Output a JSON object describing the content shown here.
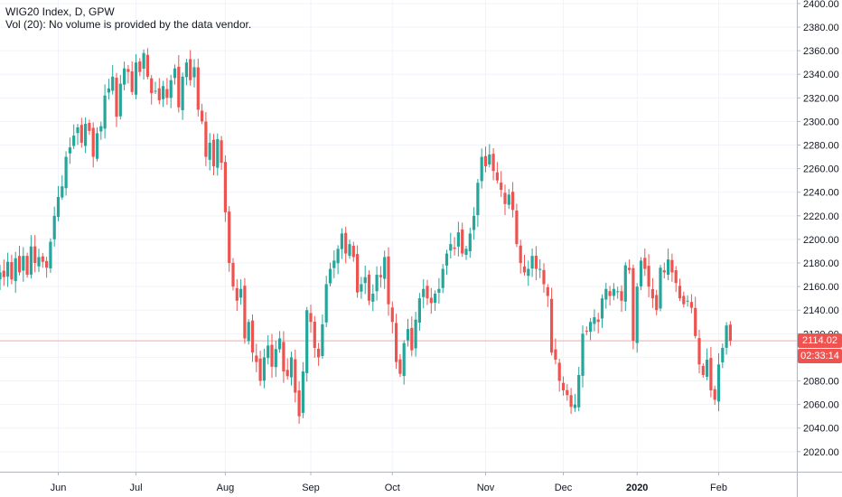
{
  "legend": {
    "title": "WIG20 Index, D, GPW",
    "volume_note": "Vol (20): No volume is provided by the data vendor."
  },
  "price_tag": {
    "value": "2114.02",
    "countdown": "02:33:14"
  },
  "colors": {
    "up": "#26a69a",
    "down": "#ef5350",
    "grid": "#f0f3fa",
    "axis_line": "#b2b5be",
    "axis_text": "#131722",
    "price_line": "#f7a8a6",
    "price_tag_bg": "#ef5350"
  },
  "chart_data": {
    "type": "candlestick",
    "symbol": "WIG20 Index",
    "interval": "D",
    "exchange": "GPW",
    "ylim": [
      2003,
      2403
    ],
    "y_ticks": [
      "2020.00",
      "2040.00",
      "2060.00",
      "2080.00",
      "2100.00",
      "2120.00",
      "2140.00",
      "2160.00",
      "2180.00",
      "2200.00",
      "2220.00",
      "2240.00",
      "2260.00",
      "2280.00",
      "2300.00",
      "2320.00",
      "2340.00",
      "2360.00",
      "2380.00",
      "2400.00"
    ],
    "x_ticks": [
      {
        "label": "Jun",
        "bar": 15,
        "bold": false
      },
      {
        "label": "Jul",
        "bar": 35,
        "bold": false
      },
      {
        "label": "Aug",
        "bar": 58,
        "bold": false
      },
      {
        "label": "Sep",
        "bar": 80,
        "bold": false
      },
      {
        "label": "Oct",
        "bar": 101,
        "bold": false
      },
      {
        "label": "Nov",
        "bar": 125,
        "bold": false
      },
      {
        "label": "Dec",
        "bar": 145,
        "bold": false
      },
      {
        "label": "2020",
        "bar": 164,
        "bold": true
      },
      {
        "label": "Feb",
        "bar": 185,
        "bold": false
      }
    ],
    "last_price": 2114.02,
    "closes": [
      2172,
      2168,
      2181,
      2166,
      2184,
      2172,
      2186,
      2170,
      2194,
      2180,
      2185,
      2181,
      2176,
      2198,
      2220,
      2236,
      2245,
      2270,
      2278,
      2288,
      2295,
      2282,
      2298,
      2292,
      2270,
      2290,
      2296,
      2322,
      2328,
      2338,
      2304,
      2332,
      2345,
      2342,
      2325,
      2350,
      2342,
      2358,
      2338,
      2324,
      2326,
      2318,
      2330,
      2320,
      2335,
      2345,
      2312,
      2338,
      2350,
      2335,
      2346,
      2310,
      2300,
      2270,
      2282,
      2262,
      2285,
      2265,
      2223,
      2180,
      2160,
      2148,
      2158,
      2116,
      2130,
      2104,
      2096,
      2080,
      2100,
      2110,
      2092,
      2107,
      2116,
      2088,
      2084,
      2100,
      2070,
      2050,
      2088,
      2140,
      2130,
      2108,
      2100,
      2128,
      2162,
      2175,
      2182,
      2192,
      2205,
      2188,
      2196,
      2185,
      2155,
      2162,
      2168,
      2148,
      2154,
      2170,
      2168,
      2185,
      2145,
      2130,
      2096,
      2086,
      2112,
      2124,
      2106,
      2132,
      2150,
      2158,
      2150,
      2146,
      2154,
      2158,
      2175,
      2188,
      2196,
      2192,
      2206,
      2188,
      2192,
      2205,
      2220,
      2248,
      2270,
      2262,
      2272,
      2258,
      2250,
      2242,
      2230,
      2238,
      2225,
      2196,
      2180,
      2172,
      2175,
      2186,
      2175,
      2175,
      2162,
      2152,
      2104,
      2098,
      2080,
      2072,
      2068,
      2058,
      2060,
      2085,
      2120,
      2122,
      2130,
      2134,
      2130,
      2150,
      2158,
      2152,
      2158,
      2156,
      2148,
      2178,
      2174,
      2114,
      2160,
      2182,
      2175,
      2160,
      2150,
      2140,
      2176,
      2172,
      2183,
      2172,
      2163,
      2150,
      2145,
      2148,
      2142,
      2118,
      2094,
      2085,
      2098,
      2072,
      2064,
      2094,
      2108,
      2127,
      2114
    ],
    "title": "",
    "xlabel": "",
    "ylabel": ""
  }
}
